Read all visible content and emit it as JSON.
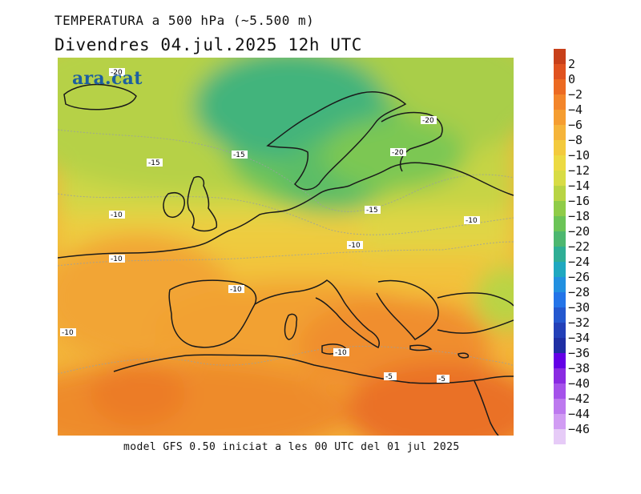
{
  "header": {
    "title": "TEMPERATURA a 500 hPa (~5.500 m)",
    "subtitle": "Divendres  04.jul.2025  12h  UTC"
  },
  "logo": {
    "text": "ara.cat"
  },
  "footer": {
    "text": "model GFS 0.50 iniciat a les 00 UTC del 01 jul 2025"
  },
  "legend": {
    "colors": [
      "#c8401a",
      "#e0521f",
      "#ec6a22",
      "#f3852a",
      "#f59d31",
      "#f5b43a",
      "#f3ca3e",
      "#ecda43",
      "#d8dc45",
      "#b8d444",
      "#8fcc48",
      "#6bc457",
      "#4db770",
      "#2fae95",
      "#1fa8c0",
      "#2290e0",
      "#2474e8",
      "#2458cf",
      "#2340b8",
      "#1f2fa4",
      "#6400e6",
      "#8a2be2",
      "#a552ea",
      "#bd79ef",
      "#d19cf3",
      "#e6cbf7"
    ],
    "labels": [
      "2",
      "0",
      "−2",
      "−4",
      "−6",
      "−8",
      "−10",
      "−12",
      "−14",
      "−16",
      "−18",
      "−20",
      "−22",
      "−24",
      "−26",
      "−28",
      "−30",
      "−32",
      "−34",
      "−36",
      "−38",
      "−40",
      "−42",
      "−44",
      "−46"
    ]
  },
  "contour_labels": [
    {
      "text": "-20"
    },
    {
      "text": "-15"
    },
    {
      "text": "-15"
    },
    {
      "text": "-10"
    },
    {
      "text": "-10"
    },
    {
      "text": "-10"
    },
    {
      "text": "-10"
    },
    {
      "text": "-20"
    },
    {
      "text": "-20"
    },
    {
      "text": "-15"
    },
    {
      "text": "-10"
    },
    {
      "text": "-10"
    },
    {
      "text": "-10"
    },
    {
      "text": "-5"
    },
    {
      "text": "-5"
    }
  ]
}
